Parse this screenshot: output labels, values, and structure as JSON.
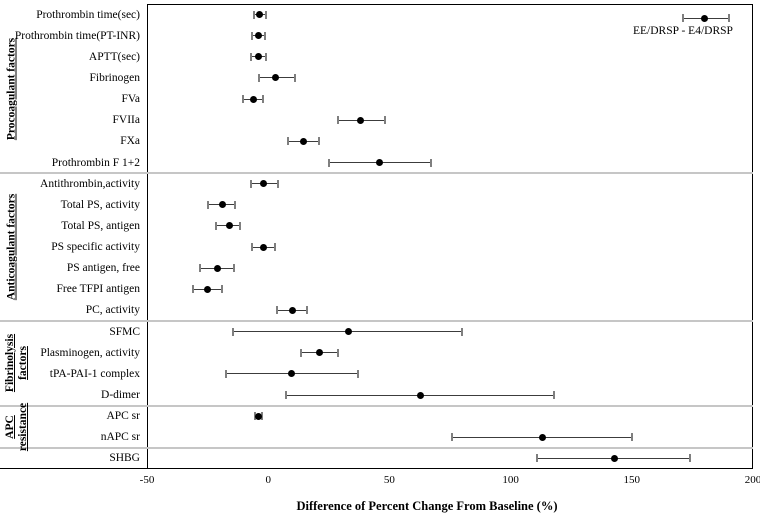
{
  "chart_data": {
    "type": "forest",
    "title": "",
    "xlabel": "Difference of Percent Change From Baseline (%)",
    "xlim": [
      -50,
      200
    ],
    "xticks": [
      -50,
      0,
      50,
      100,
      150,
      200
    ],
    "grid": false,
    "legend": {
      "label": "EE/DRSP - E4/DRSP",
      "value": 180,
      "lo": 171,
      "hi": 190,
      "position": "top-right"
    },
    "groups": [
      {
        "label": "Procoagulant factors",
        "label_lines": [
          "Procoagulant factors"
        ],
        "items": [
          {
            "label": "Prothrombin time(sec)",
            "value": -3.5,
            "lo": -6,
            "hi": -1
          },
          {
            "label": "Prothrombin time(PT-INR)",
            "value": -4,
            "lo": -6.5,
            "hi": -1.5
          },
          {
            "label": "APTT(sec)",
            "value": -4,
            "lo": -7,
            "hi": -1
          },
          {
            "label": "Fibrinogen",
            "value": 3,
            "lo": -4,
            "hi": 11
          },
          {
            "label": "FVa",
            "value": -6,
            "lo": -10.5,
            "hi": -2
          },
          {
            "label": "FVIIa",
            "value": 38,
            "lo": 29,
            "hi": 48
          },
          {
            "label": "FXa",
            "value": 14.5,
            "lo": 8,
            "hi": 21
          },
          {
            "label": "Prothrombin F 1+2",
            "value": 46,
            "lo": 25,
            "hi": 67
          }
        ]
      },
      {
        "label": "Anticoagulant factors",
        "label_lines": [
          "Anticoagulant factors"
        ],
        "items": [
          {
            "label": "Antithrombin,activity",
            "value": -2,
            "lo": -7,
            "hi": 4
          },
          {
            "label": "Total PS, activity",
            "value": -19,
            "lo": -25,
            "hi": -13.5
          },
          {
            "label": "Total PS, antigen",
            "value": -16,
            "lo": -21.5,
            "hi": -11.5
          },
          {
            "label": "PS specific activity",
            "value": -2,
            "lo": -6.5,
            "hi": 3
          },
          {
            "label": "PS antigen, free",
            "value": -21,
            "lo": -28,
            "hi": -14
          },
          {
            "label": "Free TFPI antigen",
            "value": -25,
            "lo": -31,
            "hi": -19
          },
          {
            "label": "PC, activity",
            "value": 10,
            "lo": 3.5,
            "hi": 16
          }
        ]
      },
      {
        "label": "Fibrinolysis factors",
        "label_lines": [
          "Fibrinolysis",
          "factors"
        ],
        "items": [
          {
            "label": "SFMC",
            "value": 33,
            "lo": -14.5,
            "hi": 80
          },
          {
            "label": "Plasminogen, activity",
            "value": 21,
            "lo": 13.5,
            "hi": 29
          },
          {
            "label": "tPA-PAI-1 complex",
            "value": 9.5,
            "lo": -17.5,
            "hi": 37
          },
          {
            "label": "D-dimer",
            "value": 63,
            "lo": 7.5,
            "hi": 118
          }
        ]
      },
      {
        "label": "APC resistance",
        "label_lines": [
          "APC",
          "resistance"
        ],
        "items": [
          {
            "label": "APC sr",
            "value": -4,
            "lo": -5.5,
            "hi": -2.5
          },
          {
            "label": "nAPC sr",
            "value": 113,
            "lo": 76,
            "hi": 150
          }
        ]
      },
      {
        "label": "",
        "label_lines": [],
        "items": [
          {
            "label": "SHBG",
            "value": 143,
            "lo": 111,
            "hi": 174
          }
        ]
      }
    ]
  },
  "colors": {
    "point": "#000000",
    "ci_line": "#3c3c3c",
    "ci_cap": "#7f7f7f",
    "divider": "#c6c6c6",
    "border": "#000000",
    "background": "#ffffff"
  }
}
